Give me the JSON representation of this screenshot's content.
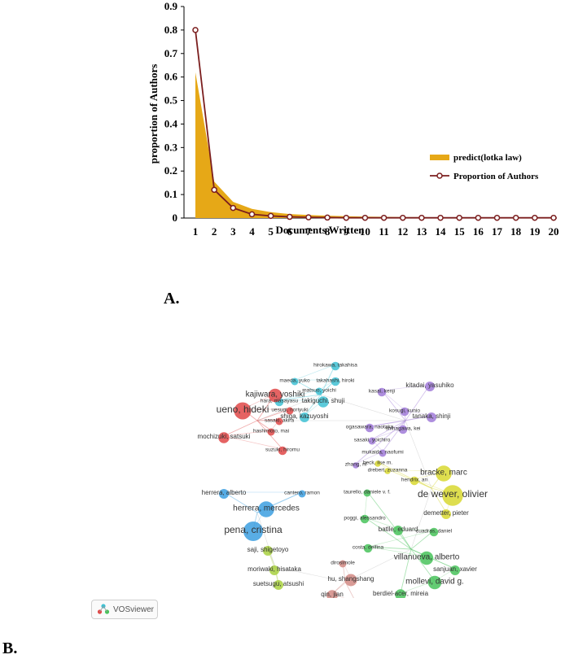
{
  "chart_data": {
    "type": "area+line",
    "title": "",
    "xlabel": "Documents Written",
    "ylabel": "proportion of Authors",
    "x": [
      1,
      2,
      3,
      4,
      5,
      6,
      7,
      8,
      9,
      10,
      11,
      12,
      13,
      14,
      15,
      16,
      17,
      18,
      19,
      20
    ],
    "ylim": [
      0,
      0.9
    ],
    "yticks": [
      "0",
      "0.1",
      "0.2",
      "0.3",
      "0.4",
      "0.5",
      "0.6",
      "0.7",
      "0.8",
      "0.9"
    ],
    "series": [
      {
        "name": "predict(lotka law)",
        "kind": "area",
        "color": "#e6a817",
        "values": [
          0.62,
          0.155,
          0.069,
          0.039,
          0.025,
          0.017,
          0.013,
          0.01,
          0.008,
          0.006,
          0.005,
          0.004,
          0.004,
          0.003,
          0.003,
          0.002,
          0.002,
          0.002,
          0.002,
          0.002
        ]
      },
      {
        "name": "Proportion of Authors",
        "kind": "line",
        "color": "#7b1e1e",
        "values": [
          0.8,
          0.12,
          0.043,
          0.016,
          0.009,
          0.005,
          0.003,
          0.002,
          0.001,
          0.001,
          0.001,
          0.001,
          0.001,
          0.001,
          0.001,
          0.001,
          0.001,
          0.001,
          0.001,
          0.001
        ]
      }
    ],
    "legend_position": "right"
  },
  "panel_a_label": "A.",
  "panel_b_label": "B.",
  "network": {
    "software": "VOSviewer",
    "clusters": [
      {
        "color": "#3ec1d3",
        "nodes": [
          {
            "label": "hirokawa, takahisa",
            "size": 5
          },
          {
            "label": "maeda, yuko",
            "size": 4
          },
          {
            "label": "takahashi, hiroki",
            "size": 5
          },
          {
            "label": "matsuo, yoichi",
            "size": 4
          },
          {
            "label": "hara, masayasu",
            "size": 5
          },
          {
            "label": "takiguchi, shuji",
            "size": 7
          },
          {
            "label": "shiga, kazuyoshi",
            "size": 6
          }
        ]
      },
      {
        "color": "#e04848",
        "nodes": [
          {
            "label": "kajiwara, yoshiki",
            "size": 9
          },
          {
            "label": "ueno, hideki",
            "size": 12
          },
          {
            "label": "uesugi, noriyuki",
            "size": 4
          },
          {
            "label": "sasaki, akira",
            "size": 4
          },
          {
            "label": "hashimoto, mai",
            "size": 4
          },
          {
            "label": "mochizuki, satsuki",
            "size": 7
          },
          {
            "label": "suzuki, hiromu",
            "size": 5
          }
        ]
      },
      {
        "color": "#a07ad8",
        "nodes": [
          {
            "label": "kitadai, yasuhiko",
            "size": 6
          },
          {
            "label": "kasai, kenji",
            "size": 5
          },
          {
            "label": "kosugi, kunio",
            "size": 5
          },
          {
            "label": "tanaka, shinji",
            "size": 6
          },
          {
            "label": "ogasawara, naotaka",
            "size": 5
          },
          {
            "label": "shinagawa, kei",
            "size": 5
          },
          {
            "label": "sasaki, yoichiro",
            "size": 4
          },
          {
            "label": "mukaida, naofumi",
            "size": 4
          },
          {
            "label": "zhang, ni",
            "size": 3
          }
        ]
      },
      {
        "color": "#d8d830",
        "nodes": [
          {
            "label": "beck, ilse m.",
            "size": 3
          },
          {
            "label": "drebert, zuzanna",
            "size": 3
          },
          {
            "label": "bracke, marc",
            "size": 11
          },
          {
            "label": "hendrix, an",
            "size": 5
          },
          {
            "label": "de wever, olivier",
            "size": 15
          },
          {
            "label": "demetter, pieter",
            "size": 6
          }
        ]
      },
      {
        "color": "#3c9fe0",
        "nodes": [
          {
            "label": "herrera, alberto",
            "size": 6
          },
          {
            "label": "cantero, ramon",
            "size": 4
          },
          {
            "label": "herrera, mercedes",
            "size": 11
          },
          {
            "label": "pena, cristina",
            "size": 14
          }
        ]
      },
      {
        "color": "#48c35a",
        "nodes": [
          {
            "label": "taurello, daniele v. f.",
            "size": 4
          },
          {
            "label": "poggi, alessandro",
            "size": 5
          },
          {
            "label": "batlle, eduard",
            "size": 6
          },
          {
            "label": "cuadras, daniel",
            "size": 5
          },
          {
            "label": "costa, delfina",
            "size": 5
          },
          {
            "label": "villanueva, alberto",
            "size": 9
          },
          {
            "label": "sanjuan, xavier",
            "size": 6
          },
          {
            "label": "mollevi, david g.",
            "size": 9
          },
          {
            "label": "berdiel-acer, mireia",
            "size": 7
          }
        ]
      },
      {
        "color": "#a8d040",
        "nodes": [
          {
            "label": "saji, shigetoyo",
            "size": 6
          },
          {
            "label": "moriwaki, hisataka",
            "size": 6
          },
          {
            "label": "suetsugu, atsushi",
            "size": 6
          }
        ]
      },
      {
        "color": "#d28a84",
        "nodes": [
          {
            "label": "dirosimole",
            "size": 4
          },
          {
            "label": "hu, shangshang",
            "size": 8
          },
          {
            "label": "qin, jian",
            "size": 7
          },
          {
            "label": "gao, rui",
            "size": 4
          }
        ]
      }
    ]
  }
}
